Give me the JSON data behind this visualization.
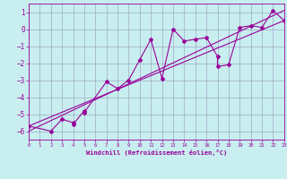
{
  "xlabel": "Windchill (Refroidissement éolien,°C)",
  "bg_color": "#c8eef0",
  "line_color": "#990099",
  "grid_color": "#9999bb",
  "xlim": [
    0,
    23
  ],
  "ylim": [
    -6.5,
    1.5
  ],
  "xticks": [
    0,
    1,
    2,
    3,
    4,
    5,
    6,
    7,
    8,
    9,
    10,
    11,
    12,
    13,
    14,
    15,
    16,
    17,
    18,
    19,
    20,
    21,
    22,
    23
  ],
  "yticks": [
    -6,
    -5,
    -4,
    -3,
    -2,
    -1,
    0,
    1
  ],
  "series1_x": [
    0,
    2,
    3,
    4,
    4,
    5,
    5,
    7,
    8,
    9,
    10,
    11,
    12,
    13,
    14,
    15,
    16,
    17,
    17,
    18,
    19,
    20,
    21,
    22,
    23
  ],
  "series1_y": [
    -5.7,
    -6.0,
    -5.3,
    -5.5,
    -5.6,
    -4.8,
    -4.9,
    -3.1,
    -3.5,
    -3.0,
    -1.8,
    -0.6,
    -2.9,
    -0.0,
    -0.7,
    -0.6,
    -0.5,
    -1.6,
    -2.2,
    -2.1,
    0.1,
    0.2,
    0.1,
    1.1,
    0.5
  ],
  "series2_x": [
    0,
    23
  ],
  "series2_y": [
    -5.7,
    0.5
  ],
  "series3_x": [
    0,
    23
  ],
  "series3_y": [
    -6.0,
    1.1
  ]
}
